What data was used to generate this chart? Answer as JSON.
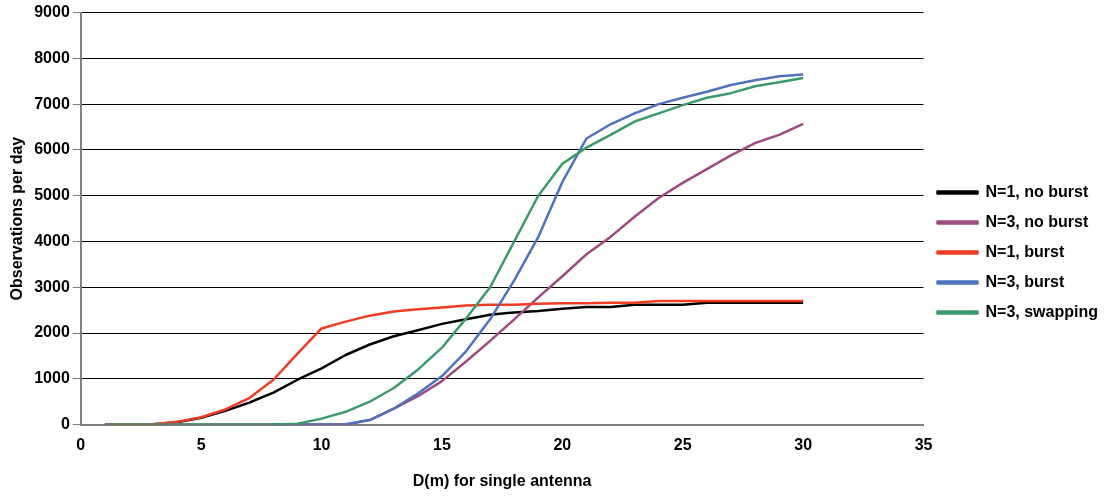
{
  "chart_data": {
    "type": "line",
    "xlabel": "D(m) for single antenna",
    "ylabel": "Observations per day",
    "x": [
      1,
      2,
      3,
      4,
      5,
      6,
      7,
      8,
      9,
      10,
      11,
      12,
      13,
      14,
      15,
      16,
      17,
      18,
      19,
      20,
      21,
      22,
      23,
      24,
      25,
      26,
      27,
      28,
      29,
      30
    ],
    "xlim": [
      0,
      35
    ],
    "xticks": [
      0,
      5,
      10,
      15,
      20,
      25,
      30,
      35
    ],
    "ylim": [
      0,
      9000
    ],
    "yticks": [
      0,
      1000,
      2000,
      3000,
      4000,
      5000,
      6000,
      7000,
      8000,
      9000
    ],
    "grid": "y",
    "legend": "right",
    "marker": "none",
    "line_style": "solid",
    "series": [
      {
        "name": "N=1, no burst",
        "color": "#000000",
        "values": [
          0,
          0,
          10,
          50,
          150,
          300,
          480,
          700,
          980,
          1230,
          1520,
          1750,
          1930,
          2060,
          2200,
          2300,
          2400,
          2450,
          2480,
          2530,
          2570,
          2570,
          2620,
          2620,
          2620,
          2660,
          2660,
          2660,
          2660,
          2660
        ]
      },
      {
        "name": "N=3, no burst",
        "color": "#9e4a7e",
        "values": [
          0,
          0,
          0,
          0,
          0,
          0,
          0,
          0,
          0,
          0,
          0,
          100,
          350,
          620,
          950,
          1380,
          1830,
          2300,
          2780,
          3240,
          3720,
          4100,
          4540,
          4950,
          5280,
          5580,
          5880,
          6150,
          6330,
          6570
        ]
      },
      {
        "name": "N=1, burst",
        "color": "#f03c25",
        "values": [
          0,
          0,
          10,
          60,
          160,
          330,
          580,
          980,
          1550,
          2100,
          2250,
          2380,
          2470,
          2520,
          2560,
          2600,
          2620,
          2620,
          2640,
          2650,
          2650,
          2660,
          2660,
          2700,
          2700,
          2700,
          2700,
          2700,
          2700,
          2700
        ]
      },
      {
        "name": "N=3, burst",
        "color": "#4f72be",
        "values": [
          null,
          null,
          null,
          null,
          null,
          null,
          null,
          0,
          0,
          0,
          10,
          100,
          350,
          680,
          1060,
          1600,
          2300,
          3150,
          4100,
          5300,
          6250,
          6560,
          6800,
          7000,
          7140,
          7270,
          7420,
          7520,
          7610,
          7650
        ]
      },
      {
        "name": "N=3, swapping",
        "color": "#3a9a6c",
        "values": [
          0,
          0,
          0,
          0,
          0,
          0,
          0,
          0,
          20,
          130,
          280,
          500,
          800,
          1200,
          1680,
          2320,
          3000,
          4000,
          5000,
          5700,
          6050,
          6330,
          6620,
          6800,
          6980,
          7140,
          7240,
          7390,
          7480,
          7570
        ]
      }
    ]
  }
}
